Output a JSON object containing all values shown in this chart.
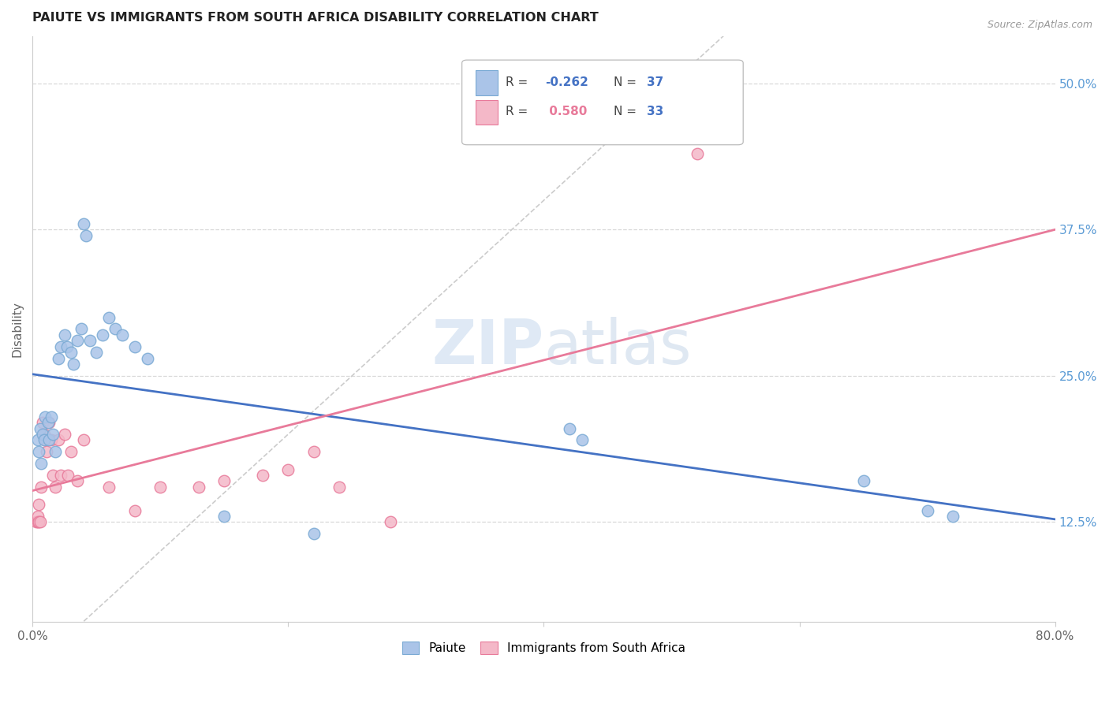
{
  "title": "PAIUTE VS IMMIGRANTS FROM SOUTH AFRICA DISABILITY CORRELATION CHART",
  "source": "Source: ZipAtlas.com",
  "ylabel": "Disability",
  "xlim": [
    0.0,
    0.8
  ],
  "ylim": [
    0.04,
    0.54
  ],
  "yticks": [
    0.125,
    0.25,
    0.375,
    0.5
  ],
  "ytick_labels": [
    "12.5%",
    "25.0%",
    "37.5%",
    "50.0%"
  ],
  "xticks": [
    0.0,
    0.2,
    0.4,
    0.6,
    0.8
  ],
  "xtick_labels": [
    "0.0%",
    "",
    "",
    "",
    "80.0%"
  ],
  "background_color": "#ffffff",
  "grid_color": "#d8d8d8",
  "paiute_color": "#aac4e8",
  "paiute_edge_color": "#7aaad4",
  "immigrants_color": "#f4b8c8",
  "immigrants_edge_color": "#e87a9a",
  "paiute_line_color": "#4472c4",
  "immigrants_line_color": "#e87a9a",
  "diagonal_color": "#cccccc",
  "legend_R_paiute_color": "#4472c4",
  "legend_R_immigrants_color": "#e87a9a",
  "legend_N_color": "#4472c4",
  "paiute_x": [
    0.004,
    0.005,
    0.006,
    0.007,
    0.008,
    0.009,
    0.01,
    0.012,
    0.013,
    0.015,
    0.016,
    0.018,
    0.02,
    0.022,
    0.025,
    0.027,
    0.03,
    0.032,
    0.035,
    0.038,
    0.04,
    0.042,
    0.045,
    0.05,
    0.055,
    0.06,
    0.065,
    0.07,
    0.08,
    0.09,
    0.15,
    0.22,
    0.42,
    0.43,
    0.65,
    0.7,
    0.72
  ],
  "paiute_y": [
    0.195,
    0.185,
    0.205,
    0.175,
    0.2,
    0.195,
    0.215,
    0.21,
    0.195,
    0.215,
    0.2,
    0.185,
    0.265,
    0.275,
    0.285,
    0.275,
    0.27,
    0.26,
    0.28,
    0.29,
    0.38,
    0.37,
    0.28,
    0.27,
    0.285,
    0.3,
    0.29,
    0.285,
    0.275,
    0.265,
    0.13,
    0.115,
    0.205,
    0.195,
    0.16,
    0.135,
    0.13
  ],
  "immigrants_x": [
    0.003,
    0.004,
    0.004,
    0.005,
    0.005,
    0.006,
    0.007,
    0.008,
    0.009,
    0.01,
    0.011,
    0.013,
    0.015,
    0.016,
    0.018,
    0.02,
    0.022,
    0.025,
    0.028,
    0.03,
    0.035,
    0.04,
    0.06,
    0.08,
    0.1,
    0.13,
    0.15,
    0.18,
    0.2,
    0.22,
    0.24,
    0.28,
    0.52
  ],
  "immigrants_y": [
    0.125,
    0.125,
    0.13,
    0.125,
    0.14,
    0.125,
    0.155,
    0.21,
    0.2,
    0.195,
    0.185,
    0.21,
    0.195,
    0.165,
    0.155,
    0.195,
    0.165,
    0.2,
    0.165,
    0.185,
    0.16,
    0.195,
    0.155,
    0.135,
    0.155,
    0.155,
    0.16,
    0.165,
    0.17,
    0.185,
    0.155,
    0.125,
    0.44
  ]
}
